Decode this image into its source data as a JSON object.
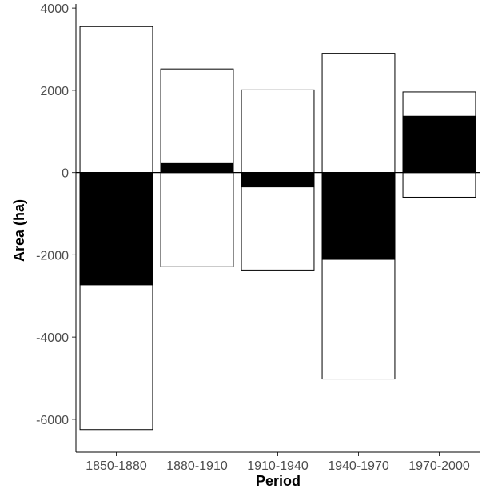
{
  "chart_data": {
    "type": "bar",
    "title": "",
    "xlabel": "Period",
    "ylabel": "Area (ha)",
    "categories": [
      "1850-1880",
      "1880-1910",
      "1910-1940",
      "1940-1970",
      "1970-2000"
    ],
    "series": [
      {
        "values": [
          3550,
          2520,
          2010,
          2900,
          1960
        ]
      },
      {
        "values": [
          -6250,
          -2290,
          -2370,
          -5020,
          -600
        ]
      },
      {
        "values": [
          -2730,
          220,
          -350,
          -2110,
          1370
        ]
      }
    ],
    "ylim": [
      -6800,
      4100
    ],
    "yticks": [
      -6000,
      -4000,
      -2000,
      0,
      2000,
      4000
    ],
    "grid": false,
    "colors": {
      "outline_bars": "#ffffff",
      "net_bars": "#000000",
      "stroke": "#000000"
    }
  }
}
